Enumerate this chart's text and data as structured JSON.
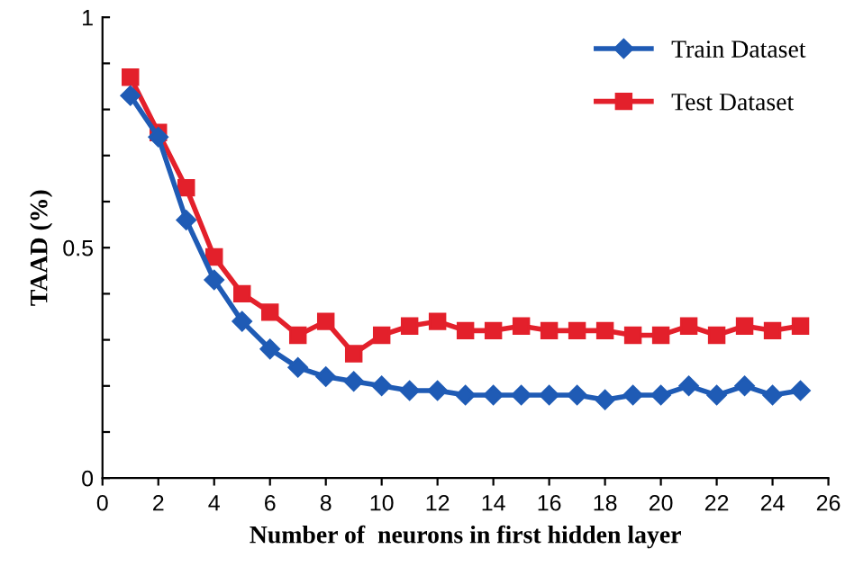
{
  "chart_data": {
    "type": "line",
    "xlabel": "Number of  neurons in first hidden layer",
    "ylabel": "TAAD (%)",
    "x": [
      1,
      2,
      3,
      4,
      5,
      6,
      7,
      8,
      9,
      10,
      11,
      12,
      13,
      14,
      15,
      16,
      17,
      18,
      19,
      20,
      21,
      22,
      23,
      24,
      25
    ],
    "series": [
      {
        "name": "Train Dataset",
        "color": "#1f5bb5",
        "marker": "diamond",
        "values": [
          0.83,
          0.74,
          0.56,
          0.43,
          0.34,
          0.28,
          0.24,
          0.22,
          0.21,
          0.2,
          0.19,
          0.19,
          0.18,
          0.18,
          0.18,
          0.18,
          0.18,
          0.17,
          0.18,
          0.18,
          0.2,
          0.18,
          0.2,
          0.18,
          0.19
        ]
      },
      {
        "name": "Test Dataset",
        "color": "#e3202b",
        "marker": "square",
        "values": [
          0.87,
          0.75,
          0.63,
          0.48,
          0.4,
          0.36,
          0.31,
          0.34,
          0.27,
          0.31,
          0.33,
          0.34,
          0.32,
          0.32,
          0.33,
          0.32,
          0.32,
          0.32,
          0.31,
          0.31,
          0.33,
          0.31,
          0.33,
          0.32,
          0.33
        ]
      }
    ],
    "xlim": [
      0,
      26
    ],
    "xticks": [
      0,
      2,
      4,
      6,
      8,
      10,
      12,
      14,
      16,
      18,
      20,
      22,
      24,
      26
    ],
    "ylim": [
      0,
      1
    ],
    "yticks": [
      0,
      {
        "value": 0.1,
        "label": null
      },
      {
        "value": 0.2,
        "label": null
      },
      {
        "value": 0.3,
        "label": null
      },
      {
        "value": 0.4,
        "label": null
      },
      0.5,
      {
        "value": 0.6,
        "label": null
      },
      {
        "value": 0.7,
        "label": null
      },
      {
        "value": 0.8,
        "label": null
      },
      {
        "value": 0.9,
        "label": null
      },
      1
    ],
    "grid": false,
    "legend": "top right",
    "line_style": "solid"
  }
}
